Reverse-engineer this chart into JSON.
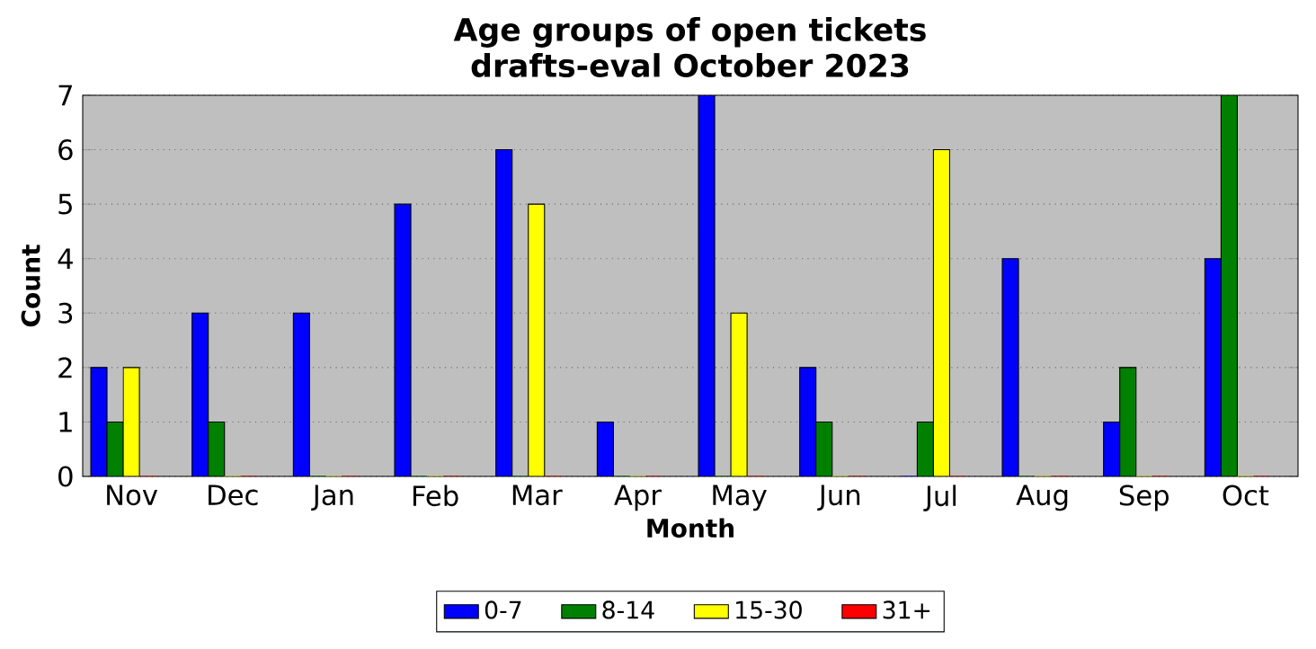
{
  "chart_data": {
    "type": "bar",
    "title": "Age groups of open tickets\ndrafts-eval October 2023",
    "xlabel": "Month",
    "ylabel": "Count",
    "categories": [
      "Nov",
      "Dec",
      "Jan",
      "Feb",
      "Mar",
      "Apr",
      "May",
      "Jun",
      "Jul",
      "Aug",
      "Sep",
      "Oct"
    ],
    "series": [
      {
        "name": "0-7",
        "color": "#0000ff",
        "values": [
          2,
          3,
          3,
          5,
          6,
          1,
          7,
          2,
          0,
          4,
          1,
          4
        ]
      },
      {
        "name": "8-14",
        "color": "#008000",
        "values": [
          1,
          1,
          0,
          0,
          0,
          0,
          0,
          1,
          1,
          0,
          2,
          7
        ]
      },
      {
        "name": "15-30",
        "color": "#ffff00",
        "values": [
          2,
          0,
          0,
          0,
          5,
          0,
          3,
          0,
          6,
          0,
          0,
          0
        ]
      },
      {
        "name": "31+",
        "color": "#ff0000",
        "values": [
          0,
          0,
          0,
          0,
          0,
          0,
          0,
          0,
          0,
          0,
          0,
          0
        ]
      }
    ],
    "ylim": [
      0,
      7
    ],
    "yticks": [
      0,
      1,
      2,
      3,
      4,
      5,
      6,
      7
    ],
    "grid": "y",
    "legend": "bottom"
  }
}
